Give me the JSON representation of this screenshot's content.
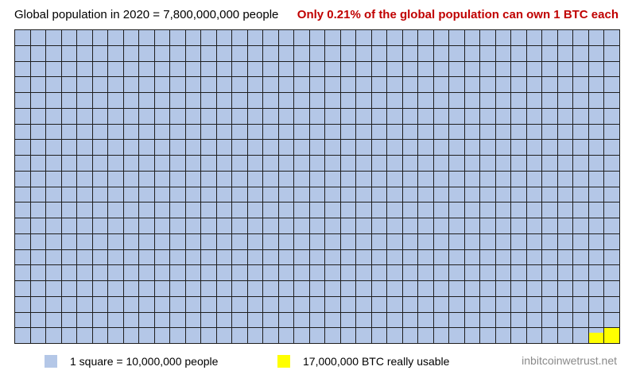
{
  "header": {
    "left_title": "Global population in 2020 = 7,800,000,000 people",
    "right_title": "Only 0.21% of the global population can own 1 BTC each"
  },
  "legend": {
    "people_label": "1 square = 10,000,000 people",
    "btc_label": "17,000,000 BTC really usable"
  },
  "watermark": "inbitcoinwetrust.net",
  "colors": {
    "people": "#b4c7e7",
    "btc": "#ffff00",
    "grid_line": "#1f1f1f",
    "highlight_text": "#c00000"
  },
  "chart_data": {
    "type": "waffle",
    "columns": 39,
    "rows": 20,
    "total_people": 7800000000,
    "people_per_square": 10000000,
    "total_squares": 780,
    "btc_usable": 17000000,
    "btc_squares": 1.7,
    "btc_share_percent": 0.21,
    "series": [
      {
        "name": "1 square = 10,000,000 people",
        "value": 7800000000
      },
      {
        "name": "17,000,000 BTC really usable",
        "value": 17000000
      }
    ]
  }
}
